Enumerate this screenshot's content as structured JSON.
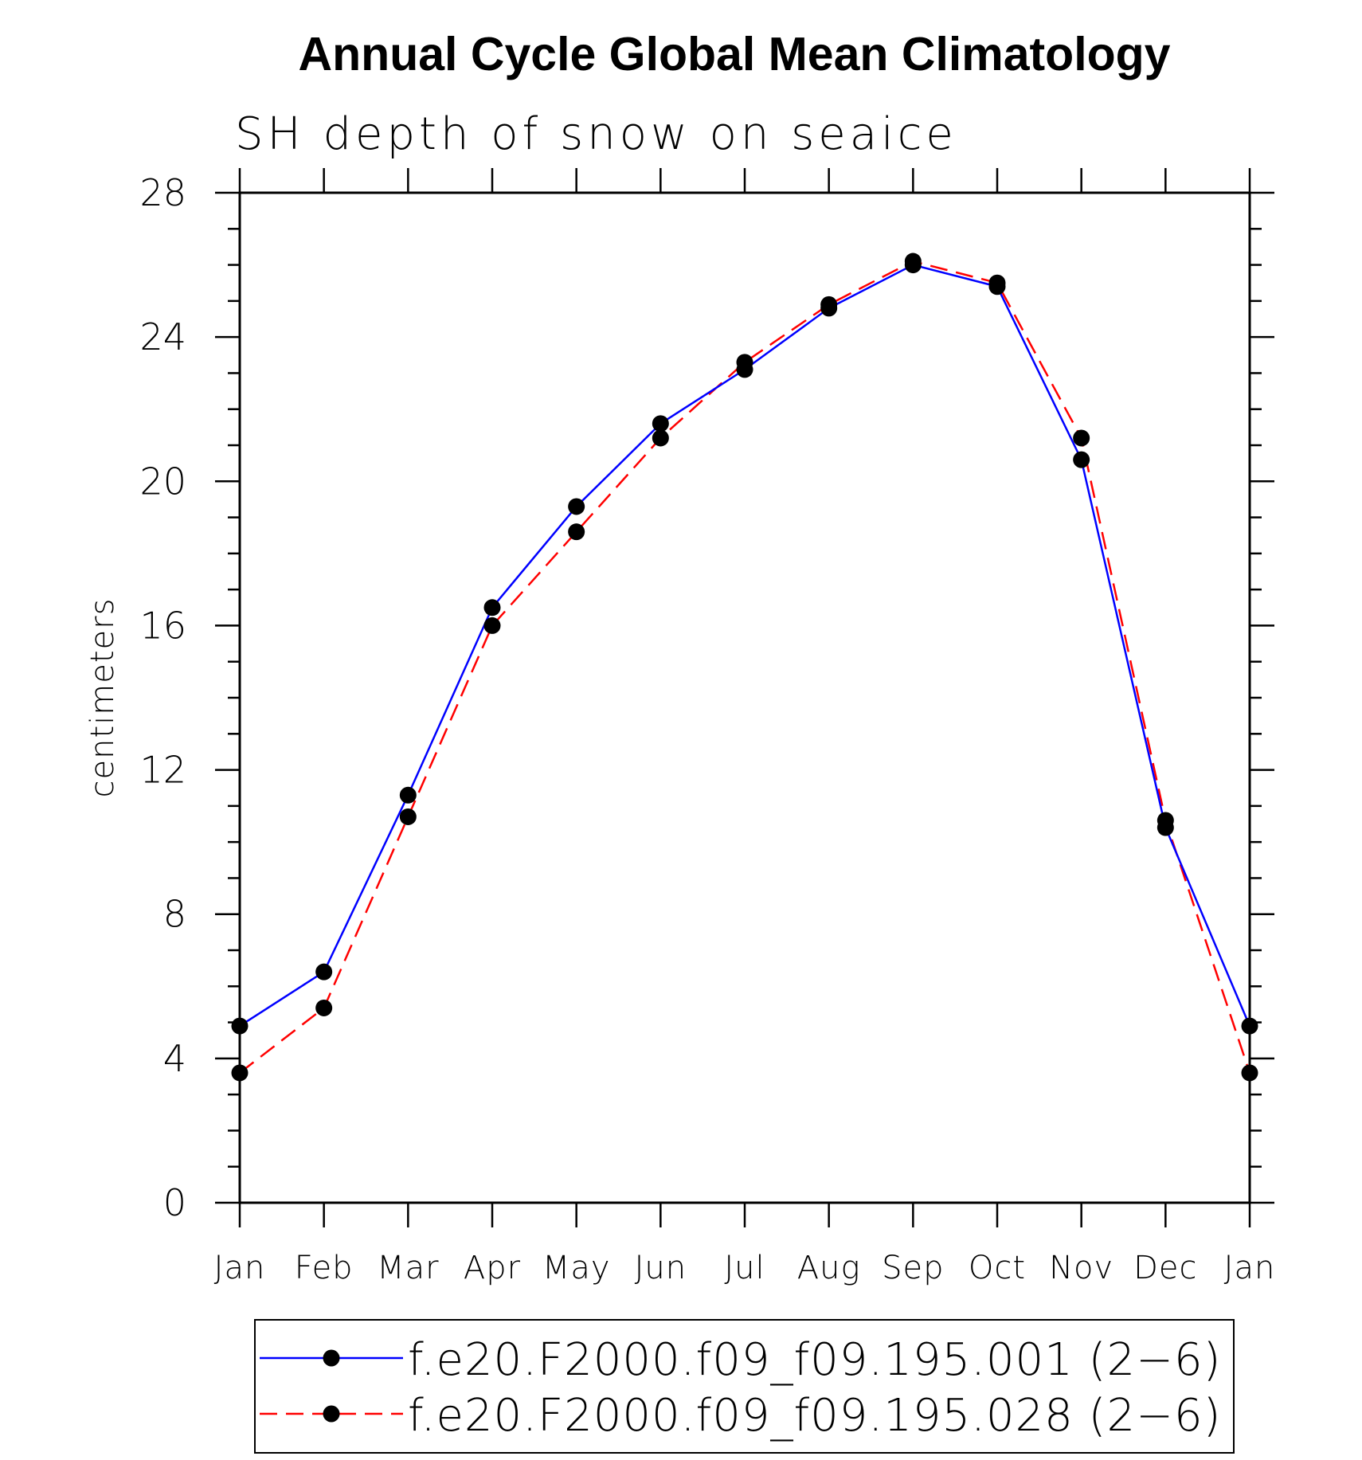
{
  "chart_data": {
    "type": "line",
    "title": "Annual Cycle Global Mean Climatology",
    "subtitle": "SH depth of snow on seaice",
    "xlabel": "",
    "ylabel": "centimeters",
    "categories": [
      "Jan",
      "Feb",
      "Mar",
      "Apr",
      "May",
      "Jun",
      "Jul",
      "Aug",
      "Sep",
      "Oct",
      "Nov",
      "Dec",
      "Jan"
    ],
    "ylim": [
      0,
      28
    ],
    "yticks": [
      "0",
      "4",
      "8",
      "12",
      "16",
      "20",
      "24",
      "28"
    ],
    "grid": false,
    "legend_position": "bottom",
    "series": [
      {
        "name": "f.e20.F2000.f09_f09.195.001 (2−6)",
        "color": "#0000ff",
        "style": "solid",
        "marker": "filled-circle",
        "values": [
          4.9,
          6.4,
          11.3,
          16.5,
          19.3,
          21.6,
          23.1,
          24.8,
          26.0,
          25.4,
          20.6,
          10.4,
          4.9
        ]
      },
      {
        "name": "f.e20.F2000.f09_f09.195.028 (2−6)",
        "color": "#ff0000",
        "style": "dashed",
        "marker": "filled-circle",
        "values": [
          3.6,
          5.4,
          10.7,
          16.0,
          18.6,
          21.2,
          23.3,
          24.9,
          26.1,
          25.5,
          21.2,
          10.6,
          3.6
        ]
      }
    ]
  }
}
